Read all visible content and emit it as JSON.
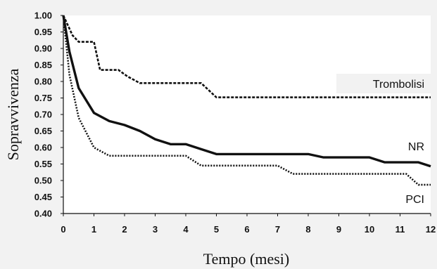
{
  "chart_data": {
    "type": "line",
    "title": "",
    "xlabel": "Tempo  (mesi)",
    "ylabel": "Sopravvivenza",
    "xlim": [
      0,
      12
    ],
    "ylim": [
      0.4,
      1.0
    ],
    "xticks": [
      0,
      1,
      2,
      3,
      4,
      5,
      6,
      7,
      8,
      9,
      10,
      11,
      12
    ],
    "yticks": [
      0.4,
      0.45,
      0.5,
      0.55,
      0.6,
      0.65,
      0.7,
      0.75,
      0.8,
      0.85,
      0.9,
      0.95,
      1.0
    ],
    "grid": false,
    "series": [
      {
        "name": "Trombolisi",
        "style": "dashed",
        "points": [
          [
            0,
            1.0
          ],
          [
            0.3,
            0.94
          ],
          [
            0.5,
            0.92
          ],
          [
            1.0,
            0.92
          ],
          [
            1.2,
            0.835
          ],
          [
            1.8,
            0.835
          ],
          [
            2.1,
            0.815
          ],
          [
            2.5,
            0.795
          ],
          [
            4.5,
            0.795
          ],
          [
            5.0,
            0.752
          ],
          [
            12,
            0.752
          ]
        ]
      },
      {
        "name": "NR",
        "style": "solid",
        "points": [
          [
            0,
            1.0
          ],
          [
            0.2,
            0.89
          ],
          [
            0.5,
            0.78
          ],
          [
            1.0,
            0.705
          ],
          [
            1.5,
            0.68
          ],
          [
            2.0,
            0.668
          ],
          [
            2.5,
            0.65
          ],
          [
            3.0,
            0.625
          ],
          [
            3.5,
            0.61
          ],
          [
            4.0,
            0.61
          ],
          [
            4.5,
            0.595
          ],
          [
            5.0,
            0.58
          ],
          [
            8.0,
            0.58
          ],
          [
            8.5,
            0.57
          ],
          [
            10.0,
            0.57
          ],
          [
            10.5,
            0.555
          ],
          [
            11.6,
            0.555
          ],
          [
            12,
            0.543
          ]
        ]
      },
      {
        "name": "PCI",
        "style": "dotted",
        "points": [
          [
            0,
            1.0
          ],
          [
            0.2,
            0.82
          ],
          [
            0.5,
            0.69
          ],
          [
            1.0,
            0.6
          ],
          [
            1.5,
            0.575
          ],
          [
            4.0,
            0.575
          ],
          [
            4.5,
            0.545
          ],
          [
            7.0,
            0.545
          ],
          [
            7.5,
            0.52
          ],
          [
            11.2,
            0.52
          ],
          [
            11.6,
            0.487
          ],
          [
            12,
            0.487
          ]
        ]
      }
    ]
  }
}
